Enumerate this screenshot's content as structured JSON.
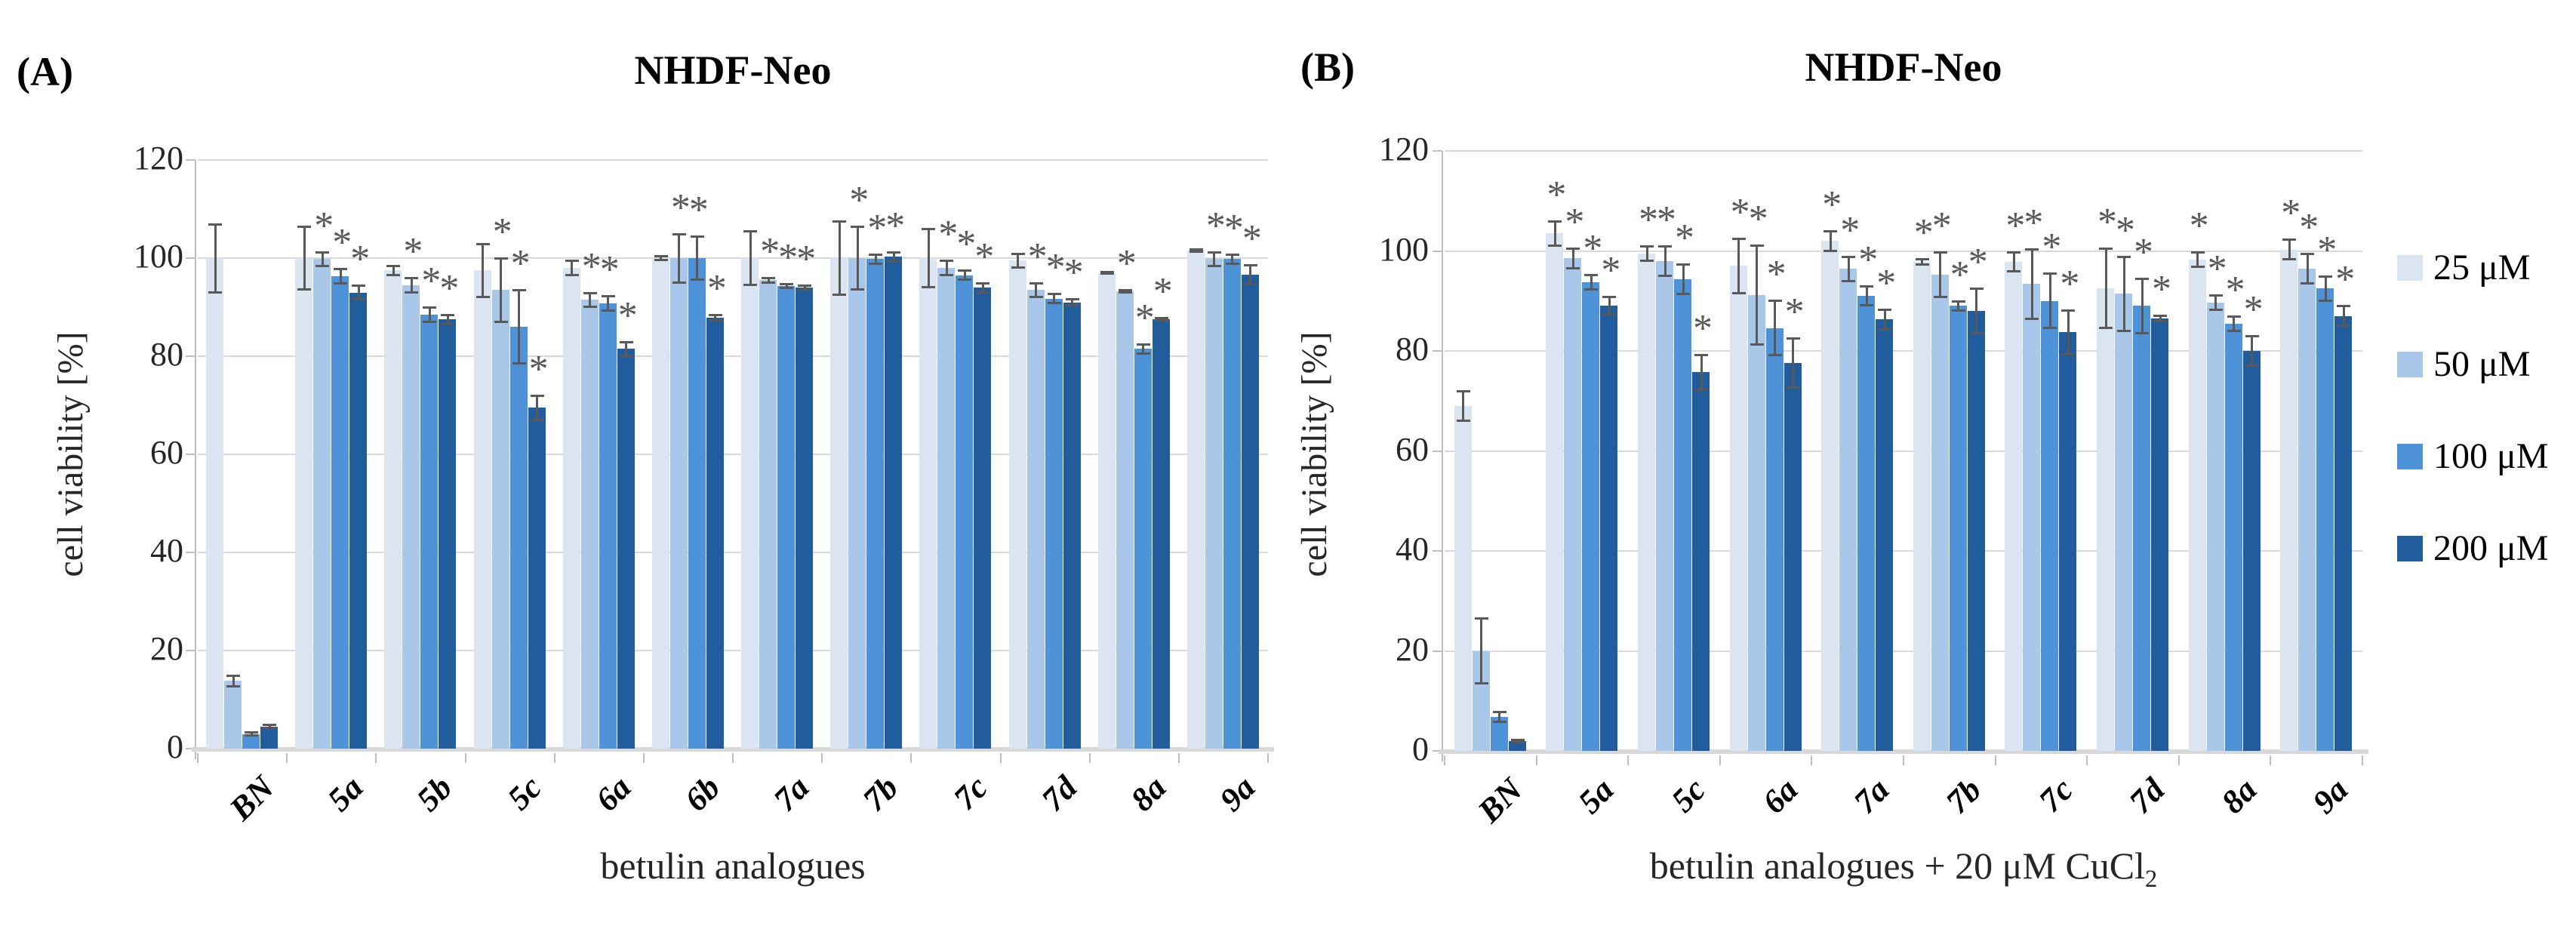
{
  "panels": [
    {
      "label": "(A)"
    },
    {
      "label": "(B)"
    }
  ],
  "legend": {
    "items": [
      {
        "label": "25 μM",
        "color": "#dbe5f1"
      },
      {
        "label": "50 μM",
        "color": "#a9c7e9"
      },
      {
        "label": "100 μM",
        "color": "#4e92d8"
      },
      {
        "label": "200 μM",
        "color": "#215d9c"
      }
    ]
  },
  "chart_data": [
    {
      "type": "bar",
      "panel": "A",
      "title": "NHDF-Neo",
      "xlabel": "betulin analogues",
      "xlabel_sub": "",
      "ylabel": "cell viability [%]",
      "ylim": [
        0,
        120
      ],
      "yticks": [
        0,
        20,
        40,
        60,
        80,
        100,
        120
      ],
      "grid": true,
      "legend_position": "right",
      "categories": [
        "BN",
        "5a",
        "5b",
        "5c",
        "6a",
        "6b",
        "7a",
        "7b",
        "7c",
        "7d",
        "8a",
        "9a"
      ],
      "series": [
        {
          "name": "25 μM",
          "color": "#dbe5f1",
          "values": [
            100,
            100,
            97.5,
            97.5,
            98,
            100,
            100,
            100,
            100,
            99.5,
            97,
            101.5
          ],
          "errors": [
            7,
            6.5,
            1,
            5.5,
            1.5,
            0.5,
            5.5,
            7.5,
            6,
            1.5,
            0.3,
            0.3
          ],
          "stars": [
            false,
            false,
            false,
            false,
            false,
            false,
            false,
            false,
            false,
            false,
            false,
            false
          ]
        },
        {
          "name": "50 μM",
          "color": "#a9c7e9",
          "values": [
            13.8,
            99.8,
            94.5,
            93.5,
            91.5,
            100,
            95.5,
            100,
            98,
            93.5,
            93.3,
            99.8
          ],
          "errors": [
            1.2,
            1.5,
            1.5,
            6.5,
            1.5,
            5,
            0.5,
            6.5,
            1.5,
            1.5,
            0.3,
            1.5
          ],
          "stars": [
            false,
            true,
            true,
            true,
            true,
            true,
            true,
            true,
            true,
            true,
            true,
            true
          ]
        },
        {
          "name": "100 μM",
          "color": "#4e92d8",
          "values": [
            3,
            96.3,
            88.5,
            86,
            90.8,
            100,
            94.3,
            99.8,
            96.5,
            91.7,
            81.5,
            99.8
          ],
          "errors": [
            0.4,
            1.5,
            1.5,
            7.5,
            1.5,
            4.5,
            0.5,
            1,
            1,
            1,
            1,
            1
          ],
          "stars": [
            false,
            true,
            true,
            true,
            true,
            true,
            true,
            true,
            true,
            true,
            true,
            true
          ]
        },
        {
          "name": "200 μM",
          "color": "#215d9c",
          "values": [
            4.5,
            93,
            87.5,
            69.5,
            81.5,
            87.8,
            94,
            100.3,
            94,
            91,
            87.5,
            96.6
          ],
          "errors": [
            0.4,
            1.5,
            1,
            2.5,
            1.5,
            0.6,
            0.5,
            1,
            1,
            0.7,
            0.3,
            2
          ],
          "stars": [
            false,
            true,
            true,
            true,
            true,
            true,
            true,
            true,
            true,
            true,
            true,
            true
          ]
        }
      ]
    },
    {
      "type": "bar",
      "panel": "B",
      "title": "NHDF-Neo",
      "xlabel": "betulin analogues + 20 μM CuCl",
      "xlabel_sub": "2",
      "ylabel": "cell viability [%]",
      "ylim": [
        0,
        120
      ],
      "yticks": [
        0,
        20,
        40,
        60,
        80,
        100,
        120
      ],
      "grid": true,
      "legend_position": "right",
      "categories": [
        "BN",
        "5a",
        "5c",
        "6a",
        "7a",
        "7b",
        "7c",
        "7d",
        "8a",
        "9a"
      ],
      "series": [
        {
          "name": "25 μM",
          "color": "#dbe5f1",
          "values": [
            69,
            103.5,
            99.5,
            97,
            102,
            97.8,
            97.8,
            92.5,
            98.2,
            100.3
          ],
          "errors": [
            3,
            2.5,
            1.5,
            5.5,
            2,
            0.6,
            2,
            8,
            1.5,
            2
          ],
          "stars": [
            false,
            true,
            true,
            true,
            true,
            true,
            true,
            true,
            true,
            true
          ]
        },
        {
          "name": "50 μM",
          "color": "#a9c7e9",
          "values": [
            20,
            98.5,
            98,
            91.2,
            96.4,
            95.2,
            93.4,
            91.4,
            89.6,
            96.5
          ],
          "errors": [
            6.5,
            2,
            3,
            10,
            2.5,
            4.5,
            7,
            7.5,
            1.5,
            3
          ],
          "stars": [
            false,
            true,
            true,
            true,
            true,
            true,
            true,
            true,
            true,
            true
          ]
        },
        {
          "name": "100 μM",
          "color": "#4e92d8",
          "values": [
            6.8,
            93.8,
            94.3,
            84.6,
            91,
            89,
            90,
            89,
            85.4,
            92.5
          ],
          "errors": [
            1,
            1.5,
            3,
            5.5,
            2,
            1,
            5.5,
            5.5,
            1.5,
            2.5
          ],
          "stars": [
            false,
            true,
            true,
            true,
            true,
            true,
            true,
            true,
            true,
            true
          ]
        },
        {
          "name": "200 μM",
          "color": "#215d9c",
          "values": [
            2,
            89,
            75.7,
            77.6,
            86.3,
            88,
            83.7,
            86.5,
            80,
            87
          ],
          "errors": [
            0.3,
            1.8,
            3.5,
            5,
            2,
            4.5,
            4.5,
            0.6,
            3,
            2
          ],
          "stars": [
            false,
            true,
            true,
            true,
            true,
            true,
            true,
            true,
            true,
            true
          ]
        }
      ]
    }
  ]
}
